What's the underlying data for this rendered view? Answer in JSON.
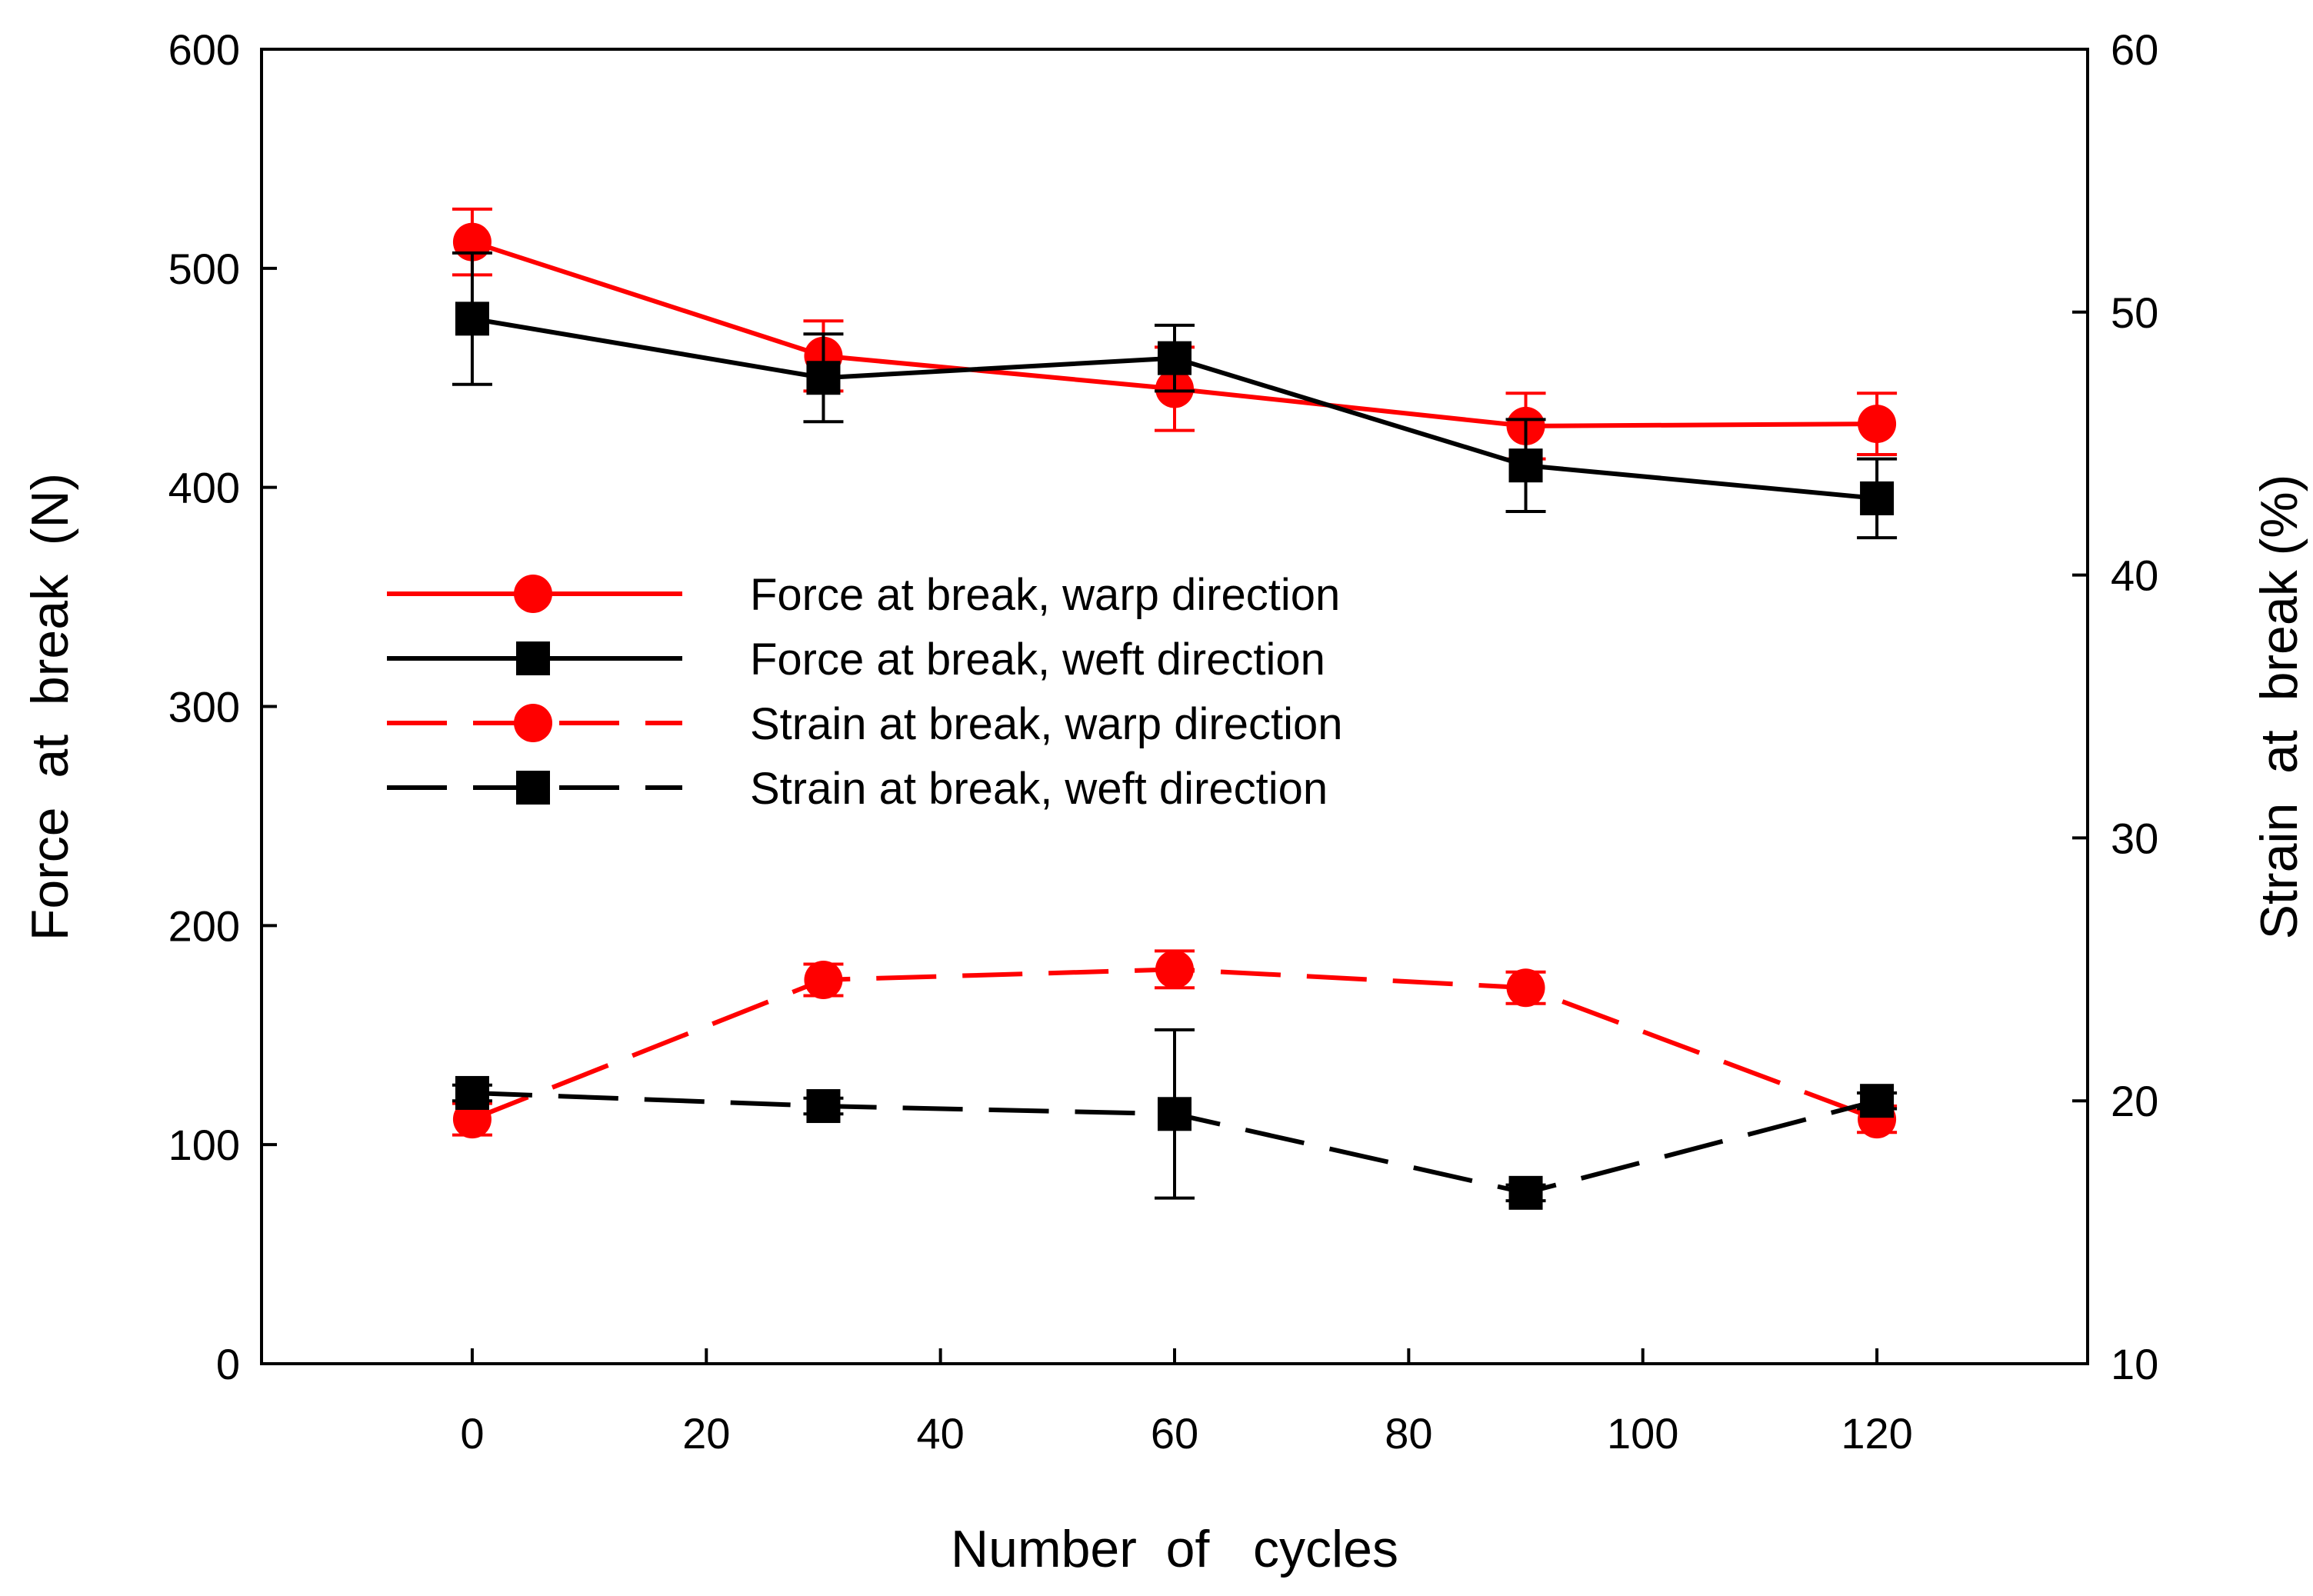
{
  "chart_data": {
    "type": "line",
    "title": "",
    "xlabel": "Number  of   cycles",
    "ylabel": "Force  at  break  (N)",
    "y2label": "Strain  at  break (%)",
    "xlim": [
      -18,
      138
    ],
    "ylim": [
      0,
      600
    ],
    "y2lim": [
      10,
      60
    ],
    "xticks": [
      0,
      20,
      40,
      60,
      80,
      100,
      120
    ],
    "yticks": [
      0,
      100,
      200,
      300,
      400,
      500,
      600
    ],
    "y2ticks": [
      10,
      20,
      30,
      40,
      50,
      60
    ],
    "legend_position": "center-left",
    "grid": false,
    "series": [
      {
        "name": "Force at break, warp direction",
        "axis": "left",
        "color": "#ff0000",
        "dash": "solid",
        "marker": "circle",
        "x": [
          0,
          30,
          60,
          90,
          120
        ],
        "values": [
          512,
          460,
          445,
          428,
          429
        ],
        "errors": [
          15,
          16,
          19,
          15,
          14
        ]
      },
      {
        "name": "Force at break, weft direction",
        "axis": "left",
        "color": "#000000",
        "dash": "solid",
        "marker": "square",
        "x": [
          0,
          30,
          60,
          90,
          120
        ],
        "values": [
          477,
          450,
          459,
          410,
          395
        ],
        "errors": [
          30,
          20,
          15,
          21,
          18
        ]
      },
      {
        "name": "Strain at break, warp direction",
        "axis": "right",
        "color": "#ff0000",
        "dash": "dashed",
        "marker": "circle",
        "x": [
          0,
          30,
          60,
          90,
          120
        ],
        "values": [
          19.3,
          24.6,
          25.0,
          24.3,
          19.3
        ],
        "errors": [
          0.6,
          0.6,
          0.7,
          0.6,
          0.5
        ]
      },
      {
        "name": "Strain at break, weft direction",
        "axis": "right",
        "color": "#000000",
        "dash": "dashed",
        "marker": "square",
        "x": [
          0,
          30,
          60,
          90,
          120
        ],
        "values": [
          20.3,
          19.8,
          19.5,
          16.5,
          20.0
        ],
        "errors": [
          0.3,
          0.3,
          3.2,
          0.3,
          0.3
        ]
      }
    ]
  }
}
